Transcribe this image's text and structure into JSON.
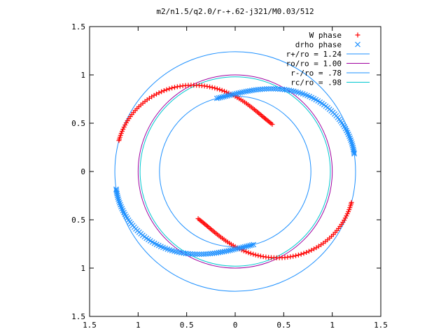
{
  "chart_data": {
    "type": "scatter",
    "title": "m2/n1.5/q2.0/r-+.62-j321/M0.03/512",
    "xlabel": "",
    "ylabel": "",
    "xlim": [
      -1.5,
      1.5
    ],
    "ylim": [
      -1.5,
      1.5
    ],
    "x_tick_values": [
      -1.5,
      -1,
      -0.5,
      0,
      0.5,
      1,
      1.5
    ],
    "x_tick_labels": [
      "1.5",
      "1",
      "0.5",
      "0",
      "0.5",
      "1",
      "1.5"
    ],
    "y_tick_values": [
      1.5,
      1,
      0.5,
      0,
      -0.5,
      -1,
      -1.5
    ],
    "y_tick_labels": [
      "1.5",
      "1",
      "0.5",
      "0",
      "0.5",
      "1",
      "1.5"
    ],
    "grid": false,
    "legend_position": "top-right",
    "series": [
      {
        "name": "W phase",
        "kind": "points",
        "marker": "+",
        "color": "#ff0000",
        "arcs": [
          {
            "r_start": 1.24,
            "r_end": 0.62,
            "theta_start_deg": 165,
            "theta_end_deg": 52
          },
          {
            "r_start": 1.24,
            "r_end": 0.62,
            "theta_start_deg": -15,
            "theta_end_deg": -128
          }
        ]
      },
      {
        "name": "drho phase",
        "kind": "points",
        "marker": "x",
        "color": "#1e90ff",
        "arcs": [
          {
            "r_start": 1.24,
            "r_end": 0.78,
            "theta_start_deg": 8.5,
            "theta_end_deg": 104
          },
          {
            "r_start": 1.24,
            "r_end": 0.78,
            "theta_start_deg": 188.5,
            "theta_end_deg": 284
          }
        ]
      },
      {
        "name": "r+/ro = 1.24",
        "kind": "circle",
        "radius": 1.24,
        "color": "#1e90ff"
      },
      {
        "name": "ro/ro = 1.00",
        "kind": "circle",
        "radius": 1.0,
        "color": "#a000a0"
      },
      {
        "name": "r-/ro = .78",
        "kind": "circle",
        "radius": 0.78,
        "color": "#1e90ff"
      },
      {
        "name": "rc/ro = .98",
        "kind": "circle",
        "radius": 0.98,
        "color": "#00c8d0"
      }
    ]
  }
}
